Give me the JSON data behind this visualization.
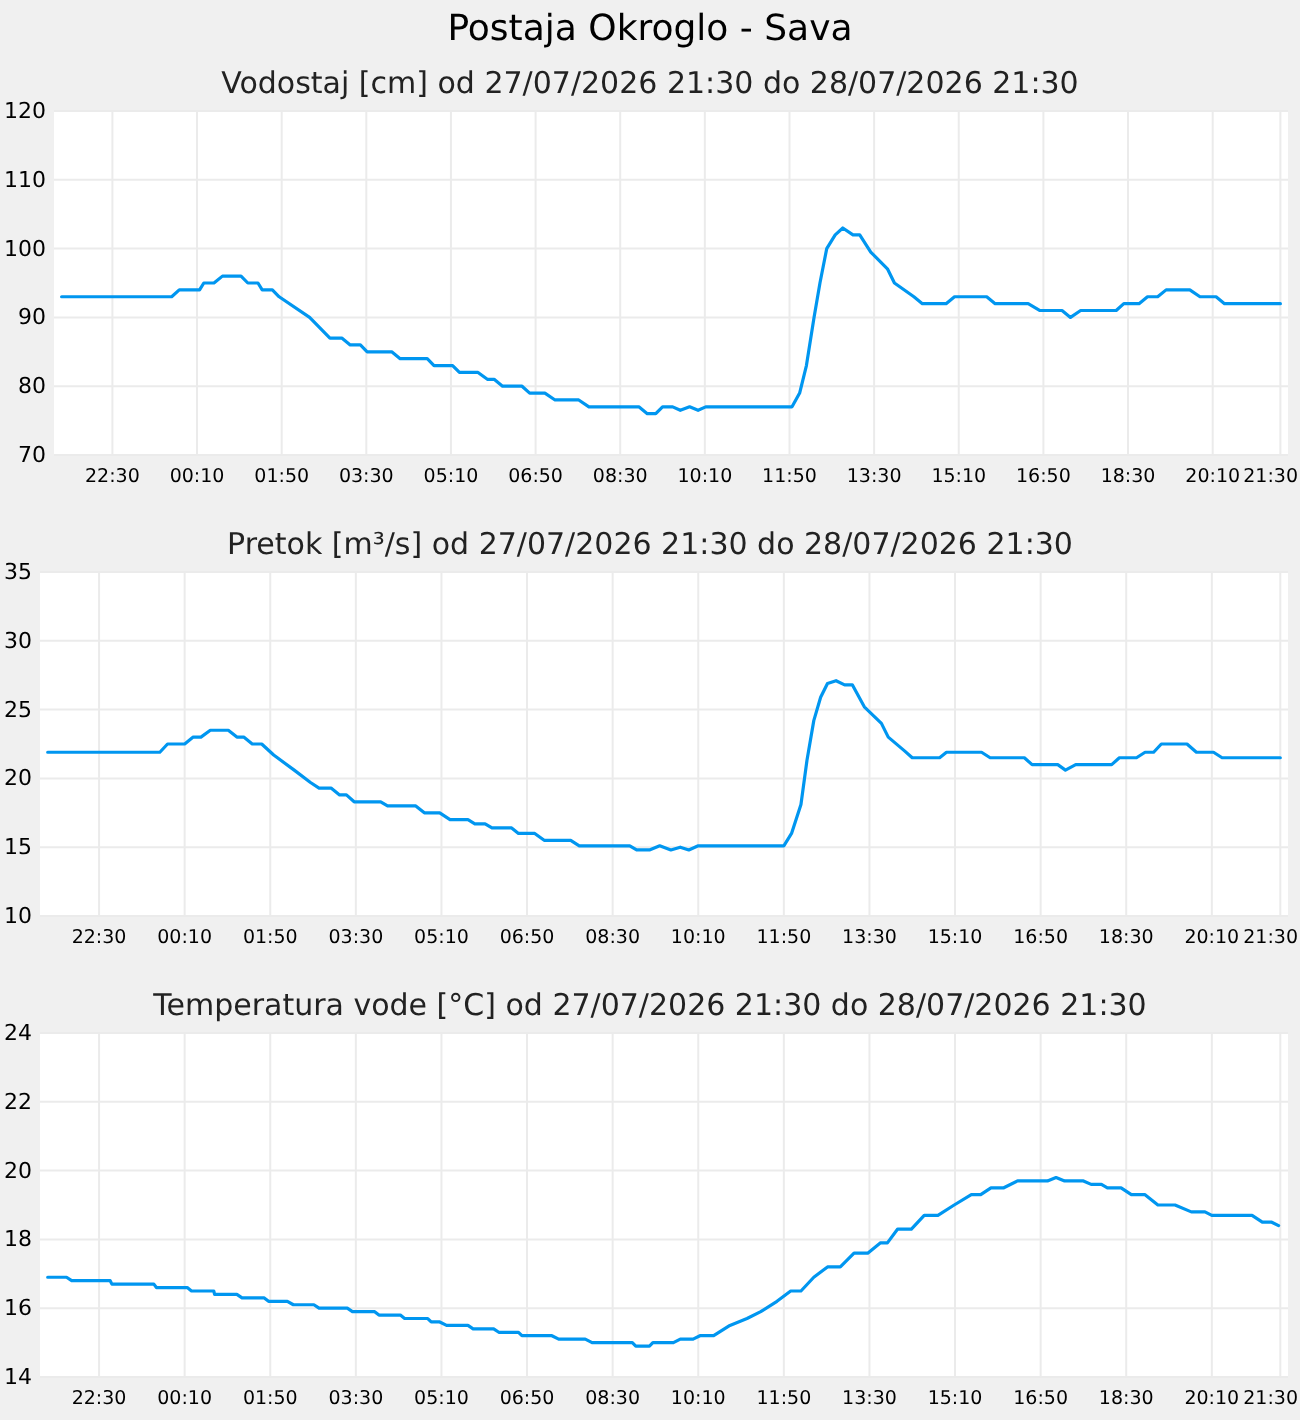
{
  "chart_data": [
    {
      "type": "line",
      "title": "Postaja Okroglo - Sava",
      "subtitle": "Vodostaj [cm] od 27/07/2026 21:30 do 28/07/2026 21:30",
      "color": "#0096f0",
      "grid": true,
      "xlim": [
        "2026-07-27T21:21",
        "2026-07-28T21:39"
      ],
      "xticks": [
        {
          "value": "2026-07-27T22:30",
          "label": "22:30"
        },
        {
          "value": "2026-07-28T00:10",
          "label": "00:10"
        },
        {
          "value": "2026-07-28T01:50",
          "label": "01:50"
        },
        {
          "value": "2026-07-28T03:30",
          "label": "03:30"
        },
        {
          "value": "2026-07-28T05:10",
          "label": "05:10"
        },
        {
          "value": "2026-07-28T06:50",
          "label": "06:50"
        },
        {
          "value": "2026-07-28T08:30",
          "label": "08:30"
        },
        {
          "value": "2026-07-28T10:10",
          "label": "10:10"
        },
        {
          "value": "2026-07-28T11:50",
          "label": "11:50"
        },
        {
          "value": "2026-07-28T13:30",
          "label": "13:30"
        },
        {
          "value": "2026-07-28T15:10",
          "label": "15:10"
        },
        {
          "value": "2026-07-28T16:50",
          "label": "16:50"
        },
        {
          "value": "2026-07-28T18:30",
          "label": "18:30"
        },
        {
          "value": "2026-07-28T20:10",
          "label": "20:10"
        },
        {
          "value": "2026-07-28T21:30",
          "label": "21:30"
        }
      ],
      "ylim": [
        70,
        120
      ],
      "yticks": [
        70,
        80,
        90,
        100,
        110,
        120
      ],
      "x": [
        "2026-07-27T21:30",
        "2026-07-27T23:40",
        "2026-07-27T23:49",
        "2026-07-28T00:13",
        "2026-07-28T00:18",
        "2026-07-28T00:30",
        "2026-07-28T00:40",
        "2026-07-28T01:02",
        "2026-07-28T01:10",
        "2026-07-28T01:22",
        "2026-07-28T01:27",
        "2026-07-28T01:39",
        "2026-07-28T01:47",
        "2026-07-28T02:23",
        "2026-07-28T02:47",
        "2026-07-28T03:01",
        "2026-07-28T03:11",
        "2026-07-28T03:23",
        "2026-07-28T03:31",
        "2026-07-28T04:00",
        "2026-07-28T04:10",
        "2026-07-28T04:42",
        "2026-07-28T04:50",
        "2026-07-28T05:12",
        "2026-07-28T05:20",
        "2026-07-28T05:42",
        "2026-07-28T05:53",
        "2026-07-28T06:01",
        "2026-07-28T06:11",
        "2026-07-28T06:34",
        "2026-07-28T06:43",
        "2026-07-28T07:01",
        "2026-07-28T07:13",
        "2026-07-28T07:41",
        "2026-07-28T07:53",
        "2026-07-28T08:52",
        "2026-07-28T09:02",
        "2026-07-28T09:12",
        "2026-07-28T09:20",
        "2026-07-28T09:32",
        "2026-07-28T09:41",
        "2026-07-28T09:52",
        "2026-07-28T10:02",
        "2026-07-28T10:11",
        "2026-07-28T11:53",
        "2026-07-28T12:02",
        "2026-07-28T12:10",
        "2026-07-28T12:19",
        "2026-07-28T12:26",
        "2026-07-28T12:34",
        "2026-07-28T12:44",
        "2026-07-28T12:53",
        "2026-07-28T13:05",
        "2026-07-28T13:13",
        "2026-07-28T13:26",
        "2026-07-28T13:46",
        "2026-07-28T13:54",
        "2026-07-28T14:17",
        "2026-07-28T14:27",
        "2026-07-28T14:55",
        "2026-07-28T15:05",
        "2026-07-28T15:43",
        "2026-07-28T15:53",
        "2026-07-28T16:32",
        "2026-07-28T16:46",
        "2026-07-28T17:12",
        "2026-07-28T17:22",
        "2026-07-28T17:34",
        "2026-07-28T18:16",
        "2026-07-28T18:25",
        "2026-07-28T18:43",
        "2026-07-28T18:53",
        "2026-07-28T19:05",
        "2026-07-28T19:15",
        "2026-07-28T19:43",
        "2026-07-28T19:55",
        "2026-07-28T20:14",
        "2026-07-28T20:24",
        "2026-07-28T21:30"
      ],
      "values": [
        93,
        93,
        94,
        94,
        95,
        95,
        96,
        96,
        95,
        95,
        94,
        94,
        93,
        90,
        87,
        87,
        86,
        86,
        85,
        85,
        84,
        84,
        83,
        83,
        82,
        82,
        81,
        81,
        80,
        80,
        79,
        79,
        78,
        78,
        77,
        77,
        76,
        76,
        77,
        77,
        76.5,
        77,
        76.5,
        77,
        77,
        79,
        83,
        90,
        95,
        100,
        102,
        103,
        102,
        102,
        99.5,
        97,
        95,
        93,
        92,
        92,
        93,
        93,
        92,
        92,
        91,
        91,
        90,
        91,
        91,
        92,
        92,
        93,
        93,
        94,
        94,
        93,
        93,
        92,
        92
      ]
    },
    {
      "type": "line",
      "title": "Pretok [m³/s] od 27/07/2026 21:30 do 28/07/2026 21:30",
      "color": "#0096f0",
      "grid": true,
      "xlim": [
        "2026-07-27T21:21",
        "2026-07-28T21:39"
      ],
      "xticks": [
        {
          "value": "2026-07-27T22:30",
          "label": "22:30"
        },
        {
          "value": "2026-07-28T00:10",
          "label": "00:10"
        },
        {
          "value": "2026-07-28T01:50",
          "label": "01:50"
        },
        {
          "value": "2026-07-28T03:30",
          "label": "03:30"
        },
        {
          "value": "2026-07-28T05:10",
          "label": "05:10"
        },
        {
          "value": "2026-07-28T06:50",
          "label": "06:50"
        },
        {
          "value": "2026-07-28T08:30",
          "label": "08:30"
        },
        {
          "value": "2026-07-28T10:10",
          "label": "10:10"
        },
        {
          "value": "2026-07-28T11:50",
          "label": "11:50"
        },
        {
          "value": "2026-07-28T13:30",
          "label": "13:30"
        },
        {
          "value": "2026-07-28T15:10",
          "label": "15:10"
        },
        {
          "value": "2026-07-28T16:50",
          "label": "16:50"
        },
        {
          "value": "2026-07-28T18:30",
          "label": "18:30"
        },
        {
          "value": "2026-07-28T20:10",
          "label": "20:10"
        },
        {
          "value": "2026-07-28T21:30",
          "label": "21:30"
        }
      ],
      "ylim": [
        10,
        35
      ],
      "yticks": [
        10,
        15,
        20,
        25,
        30,
        35
      ],
      "x": [
        "2026-07-27T21:30",
        "2026-07-27T23:41",
        "2026-07-27T23:50",
        "2026-07-28T00:10",
        "2026-07-28T00:20",
        "2026-07-28T00:29",
        "2026-07-28T00:40",
        "2026-07-28T01:01",
        "2026-07-28T01:11",
        "2026-07-28T01:19",
        "2026-07-28T01:29",
        "2026-07-28T01:40",
        "2026-07-28T01:54",
        "2026-07-28T02:18",
        "2026-07-28T02:37",
        "2026-07-28T02:47",
        "2026-07-28T03:01",
        "2026-07-28T03:11",
        "2026-07-28T03:19",
        "2026-07-28T03:28",
        "2026-07-28T03:59",
        "2026-07-28T04:07",
        "2026-07-28T04:40",
        "2026-07-28T04:50",
        "2026-07-28T05:08",
        "2026-07-28T05:20",
        "2026-07-28T05:41",
        "2026-07-28T05:49",
        "2026-07-28T06:01",
        "2026-07-28T06:09",
        "2026-07-28T06:32",
        "2026-07-28T06:40",
        "2026-07-28T06:59",
        "2026-07-28T07:10",
        "2026-07-28T07:41",
        "2026-07-28T07:51",
        "2026-07-28T08:50",
        "2026-07-28T08:58",
        "2026-07-28T09:13",
        "2026-07-28T09:25",
        "2026-07-28T09:38",
        "2026-07-28T09:49",
        "2026-07-28T09:59",
        "2026-07-28T10:10",
        "2026-07-28T11:50",
        "2026-07-28T11:59",
        "2026-07-28T12:10",
        "2026-07-28T12:17",
        "2026-07-28T12:25",
        "2026-07-28T12:33",
        "2026-07-28T12:41",
        "2026-07-28T12:51",
        "2026-07-28T13:01",
        "2026-07-28T13:10",
        "2026-07-28T13:24",
        "2026-07-28T13:44",
        "2026-07-28T13:52",
        "2026-07-28T14:11",
        "2026-07-28T14:20",
        "2026-07-28T14:52",
        "2026-07-28T15:00",
        "2026-07-28T15:41",
        "2026-07-28T15:51",
        "2026-07-28T16:31",
        "2026-07-28T16:40",
        "2026-07-28T17:10",
        "2026-07-28T17:19",
        "2026-07-28T17:31",
        "2026-07-28T18:13",
        "2026-07-28T18:22",
        "2026-07-28T18:42",
        "2026-07-28T18:52",
        "2026-07-28T19:02",
        "2026-07-28T19:11",
        "2026-07-28T19:41",
        "2026-07-28T19:52",
        "2026-07-28T20:12",
        "2026-07-28T20:22",
        "2026-07-28T21:30"
      ],
      "values": [
        21.9,
        21.9,
        22.5,
        22.5,
        23,
        23,
        23.5,
        23.5,
        23,
        23,
        22.5,
        22.5,
        21.7,
        20.6,
        19.7,
        19.3,
        19.3,
        18.8,
        18.8,
        18.3,
        18.3,
        18,
        18,
        17.5,
        17.5,
        17,
        17,
        16.7,
        16.7,
        16.4,
        16.4,
        16,
        16,
        15.5,
        15.5,
        15.1,
        15.1,
        14.8,
        14.8,
        15.1,
        14.8,
        15,
        14.8,
        15.1,
        15.1,
        16,
        18.1,
        21.3,
        24.2,
        25.9,
        26.9,
        27.1,
        26.8,
        26.8,
        25.2,
        24,
        23,
        22,
        21.5,
        21.5,
        21.9,
        21.9,
        21.5,
        21.5,
        21,
        21,
        20.6,
        21,
        21,
        21.5,
        21.5,
        21.9,
        21.9,
        22.5,
        22.5,
        21.9,
        21.9,
        21.5,
        21.5
      ]
    },
    {
      "type": "line",
      "title": "Temperatura vode [°C] od 27/07/2026 21:30 do 28/07/2026 21:30",
      "color": "#0096f0",
      "grid": true,
      "xlim": [
        "2026-07-27T21:21",
        "2026-07-28T21:39"
      ],
      "xticks": [
        {
          "value": "2026-07-27T22:30",
          "label": "22:30"
        },
        {
          "value": "2026-07-28T00:10",
          "label": "00:10"
        },
        {
          "value": "2026-07-28T01:50",
          "label": "01:50"
        },
        {
          "value": "2026-07-28T03:30",
          "label": "03:30"
        },
        {
          "value": "2026-07-28T05:10",
          "label": "05:10"
        },
        {
          "value": "2026-07-28T06:50",
          "label": "06:50"
        },
        {
          "value": "2026-07-28T08:30",
          "label": "08:30"
        },
        {
          "value": "2026-07-28T10:10",
          "label": "10:10"
        },
        {
          "value": "2026-07-28T11:50",
          "label": "11:50"
        },
        {
          "value": "2026-07-28T13:30",
          "label": "13:30"
        },
        {
          "value": "2026-07-28T15:10",
          "label": "15:10"
        },
        {
          "value": "2026-07-28T16:50",
          "label": "16:50"
        },
        {
          "value": "2026-07-28T18:30",
          "label": "18:30"
        },
        {
          "value": "2026-07-28T20:10",
          "label": "20:10"
        },
        {
          "value": "2026-07-28T21:30",
          "label": "21:30"
        }
      ],
      "ylim": [
        14,
        24
      ],
      "yticks": [
        14,
        16,
        18,
        20,
        22,
        24
      ],
      "x": [
        "2026-07-27T21:30",
        "2026-07-27T21:52",
        "2026-07-27T21:58",
        "2026-07-27T22:43",
        "2026-07-27T22:45",
        "2026-07-27T23:34",
        "2026-07-27T23:37",
        "2026-07-28T00:13",
        "2026-07-28T00:18",
        "2026-07-28T00:44",
        "2026-07-28T00:45",
        "2026-07-28T01:11",
        "2026-07-28T01:17",
        "2026-07-28T01:43",
        "2026-07-28T01:48",
        "2026-07-28T02:10",
        "2026-07-28T02:17",
        "2026-07-28T02:41",
        "2026-07-28T02:47",
        "2026-07-28T03:20",
        "2026-07-28T03:26",
        "2026-07-28T03:52",
        "2026-07-28T03:57",
        "2026-07-28T04:22",
        "2026-07-28T04:27",
        "2026-07-28T04:54",
        "2026-07-28T04:58",
        "2026-07-28T05:08",
        "2026-07-28T05:16",
        "2026-07-28T05:41",
        "2026-07-28T05:47",
        "2026-07-28T06:11",
        "2026-07-28T06:17",
        "2026-07-28T06:40",
        "2026-07-28T06:44",
        "2026-07-28T07:19",
        "2026-07-28T07:27",
        "2026-07-28T07:58",
        "2026-07-28T08:06",
        "2026-07-28T08:53",
        "2026-07-28T08:57",
        "2026-07-28T09:13",
        "2026-07-28T09:17",
        "2026-07-28T09:41",
        "2026-07-28T09:49",
        "2026-07-28T10:04",
        "2026-07-28T10:12",
        "2026-07-28T10:28",
        "2026-07-28T10:47",
        "2026-07-28T11:07",
        "2026-07-28T11:23",
        "2026-07-28T11:42",
        "2026-07-28T11:58",
        "2026-07-28T12:10",
        "2026-07-28T12:25",
        "2026-07-28T12:41",
        "2026-07-28T12:56",
        "2026-07-28T13:12",
        "2026-07-28T13:28",
        "2026-07-28T13:43",
        "2026-07-28T13:51",
        "2026-07-28T14:03",
        "2026-07-28T14:19",
        "2026-07-28T14:34",
        "2026-07-28T14:50",
        "2026-07-28T15:09",
        "2026-07-28T15:29",
        "2026-07-28T15:40",
        "2026-07-28T15:52",
        "2026-07-28T16:07",
        "2026-07-28T16:23",
        "2026-07-28T16:58",
        "2026-07-28T17:08",
        "2026-07-28T17:18",
        "2026-07-28T17:40",
        "2026-07-28T17:49",
        "2026-07-28T18:01",
        "2026-07-28T18:08",
        "2026-07-28T18:24",
        "2026-07-28T18:36",
        "2026-07-28T18:52",
        "2026-07-28T19:07",
        "2026-07-28T19:27",
        "2026-07-28T19:46",
        "2026-07-28T20:02",
        "2026-07-28T20:10",
        "2026-07-28T20:57",
        "2026-07-28T21:09",
        "2026-07-28T21:20",
        "2026-07-28T21:28"
      ],
      "values": [
        16.9,
        16.9,
        16.8,
        16.8,
        16.7,
        16.7,
        16.6,
        16.6,
        16.5,
        16.5,
        16.4,
        16.4,
        16.3,
        16.3,
        16.2,
        16.2,
        16.1,
        16.1,
        16.0,
        16.0,
        15.9,
        15.9,
        15.8,
        15.8,
        15.7,
        15.7,
        15.6,
        15.6,
        15.5,
        15.5,
        15.4,
        15.4,
        15.3,
        15.3,
        15.2,
        15.2,
        15.1,
        15.1,
        15.0,
        15.0,
        14.9,
        14.9,
        15.0,
        15.0,
        15.1,
        15.1,
        15.2,
        15.2,
        15.5,
        15.7,
        15.9,
        16.2,
        16.5,
        16.5,
        16.9,
        17.2,
        17.2,
        17.6,
        17.6,
        17.9,
        17.9,
        18.3,
        18.3,
        18.7,
        18.7,
        19.0,
        19.3,
        19.3,
        19.5,
        19.5,
        19.7,
        19.7,
        19.8,
        19.7,
        19.7,
        19.6,
        19.6,
        19.5,
        19.5,
        19.3,
        19.3,
        19.0,
        19.0,
        18.8,
        18.8,
        18.7,
        18.7,
        18.5,
        18.5,
        18.4
      ]
    }
  ]
}
